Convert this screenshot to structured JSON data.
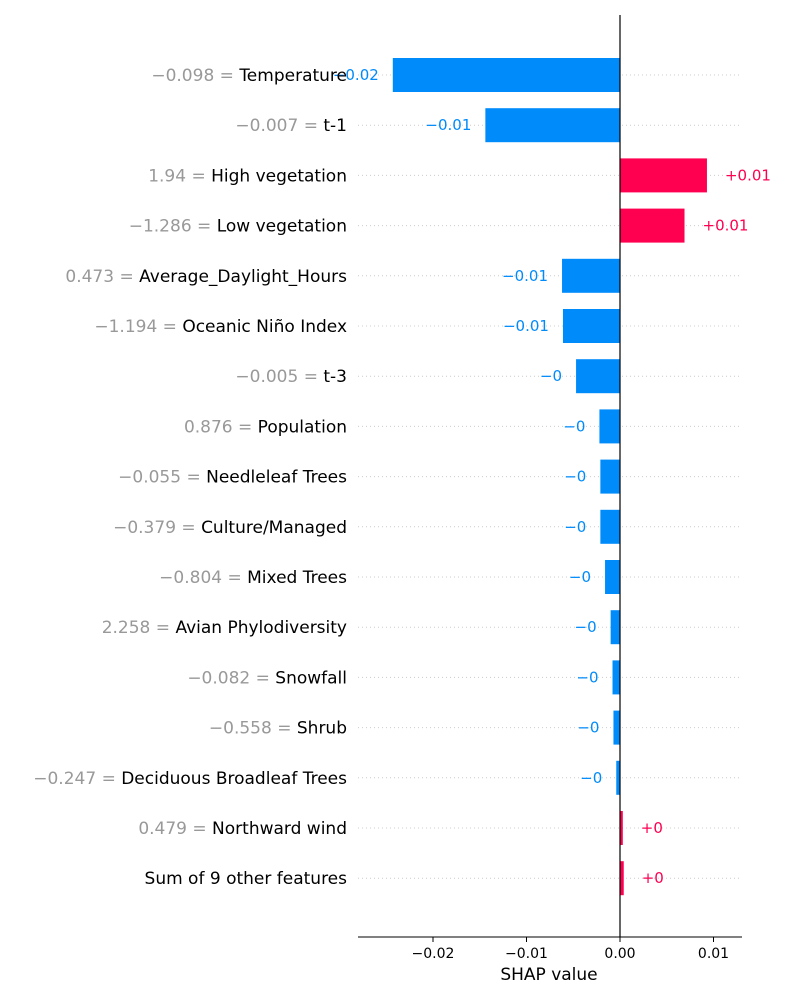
{
  "chart_data": {
    "type": "bar",
    "orientation": "horizontal",
    "xlabel": "SHAP value",
    "xlim": [
      -0.0272,
      0.0129
    ],
    "xticks": [
      -0.02,
      -0.01,
      0.0,
      0.01
    ],
    "xtick_labels": [
      "−0.02",
      "−0.01",
      "0.00",
      "0.01"
    ],
    "colors": {
      "positive": "#ff0051",
      "negative": "#008bfb",
      "feature_value": "#999999"
    },
    "features": [
      {
        "value_text": "−0.098",
        "name": "Temperature",
        "shap": -0.0243,
        "label": "−0.02"
      },
      {
        "value_text": "−0.007",
        "name": "t-1",
        "shap": -0.0144,
        "label": "−0.01"
      },
      {
        "value_text": "1.94",
        "name": "High vegetation",
        "shap": 0.0093,
        "label": "+0.01"
      },
      {
        "value_text": "−1.286",
        "name": "Low vegetation",
        "shap": 0.0069,
        "label": "+0.01"
      },
      {
        "value_text": "0.473",
        "name": "Average_Daylight_Hours",
        "shap": -0.0062,
        "label": "−0.01"
      },
      {
        "value_text": "−1.194",
        "name": "Oceanic Niño Index",
        "shap": -0.0061,
        "label": "−0.01"
      },
      {
        "value_text": "−0.005",
        "name": "t-3",
        "shap": -0.0047,
        "label": "−0"
      },
      {
        "value_text": "0.876",
        "name": "Population",
        "shap": -0.0022,
        "label": "−0"
      },
      {
        "value_text": "−0.055",
        "name": "Needleleaf Trees",
        "shap": -0.0021,
        "label": "−0"
      },
      {
        "value_text": "−0.379",
        "name": "Culture/Managed",
        "shap": -0.0021,
        "label": "−0"
      },
      {
        "value_text": "−0.804",
        "name": "Mixed Trees",
        "shap": -0.0016,
        "label": "−0"
      },
      {
        "value_text": "2.258",
        "name": "Avian Phylodiversity",
        "shap": -0.001,
        "label": "−0"
      },
      {
        "value_text": "−0.082",
        "name": "Snowfall",
        "shap": -0.0008,
        "label": "−0"
      },
      {
        "value_text": "−0.558",
        "name": "Shrub",
        "shap": -0.0007,
        "label": "−0"
      },
      {
        "value_text": "−0.247",
        "name": "Deciduous Broadleaf Trees",
        "shap": -0.0004,
        "label": "−0"
      },
      {
        "value_text": "0.479",
        "name": "Northward wind",
        "shap": 0.0003,
        "label": "+0"
      },
      {
        "value_text": "",
        "name": "Sum of 9 other features",
        "shap": 0.0004,
        "label": "+0"
      }
    ]
  }
}
